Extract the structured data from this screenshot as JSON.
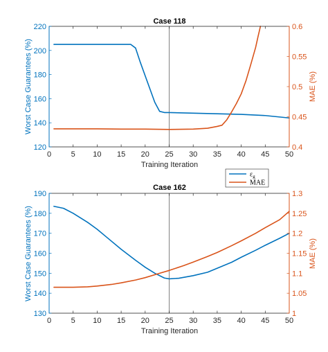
{
  "chart_data": [
    {
      "type": "line",
      "title": "Case 118",
      "xlabel": "Training Iteration",
      "ylabel_left": "Worst Case Guarantees (%)",
      "ylabel_right": "MAE (%)",
      "xlim": [
        0,
        50
      ],
      "ylim_left": [
        120,
        220
      ],
      "ylim_right": [
        0.4,
        0.6
      ],
      "xticks": [
        "0",
        "5",
        "10",
        "15",
        "20",
        "25",
        "30",
        "35",
        "40",
        "45",
        "50"
      ],
      "yticks_left": [
        "120",
        "140",
        "160",
        "180",
        "200",
        "220"
      ],
      "yticks_right": [
        "0.4",
        "0.45",
        "0.5",
        "0.55",
        "0.6"
      ],
      "vline_x": 25,
      "series": [
        {
          "axis": "left",
          "color": "#0072BD",
          "x": [
            1,
            5,
            10,
            15,
            17,
            18,
            19,
            20,
            21,
            22,
            23,
            24,
            25,
            30,
            35,
            40,
            45,
            50
          ],
          "y": [
            205,
            205,
            205,
            205,
            205,
            202,
            190,
            179,
            168,
            157,
            149.5,
            148.5,
            148.5,
            148,
            147.5,
            147,
            146,
            144
          ]
        },
        {
          "axis": "right",
          "color": "#D95319",
          "x": [
            1,
            5,
            10,
            15,
            20,
            25,
            30,
            33,
            35,
            36,
            37,
            38,
            39,
            40,
            41,
            42,
            43,
            43.5,
            44
          ],
          "y": [
            0.43,
            0.43,
            0.43,
            0.4295,
            0.4295,
            0.429,
            0.4295,
            0.431,
            0.434,
            0.436,
            0.445,
            0.458,
            0.472,
            0.488,
            0.51,
            0.537,
            0.565,
            0.583,
            0.6
          ]
        }
      ]
    },
    {
      "type": "line",
      "title": "Case 162",
      "xlabel": "Training Iteration",
      "ylabel_left": "Worst Case Guarantees (%)",
      "ylabel_right": "MAE (%)",
      "xlim": [
        0,
        50
      ],
      "ylim_left": [
        130,
        190
      ],
      "ylim_right": [
        1,
        1.3
      ],
      "xticks": [
        "0",
        "5",
        "10",
        "15",
        "20",
        "25",
        "30",
        "35",
        "40",
        "45",
        "50"
      ],
      "yticks_left": [
        "130",
        "140",
        "150",
        "160",
        "170",
        "180",
        "190"
      ],
      "yticks_right": [
        "1",
        "1.05",
        "1.1",
        "1.15",
        "1.2",
        "1.25",
        "1.3"
      ],
      "vline_x": 25,
      "series": [
        {
          "axis": "left",
          "color": "#0072BD",
          "x": [
            1,
            3,
            5,
            8,
            10,
            12,
            15,
            18,
            20,
            22,
            24,
            25,
            27,
            30,
            33,
            35,
            38,
            40,
            43,
            45,
            48,
            50
          ],
          "y": [
            183.5,
            182.5,
            180,
            175.5,
            172,
            168,
            162,
            156.5,
            153,
            150,
            147.6,
            147.2,
            147.5,
            148.8,
            150.5,
            152.5,
            155.5,
            158,
            161.5,
            164,
            167.5,
            170
          ]
        },
        {
          "axis": "right",
          "color": "#D95319",
          "x": [
            1,
            5,
            8,
            10,
            13,
            15,
            18,
            20,
            23,
            25,
            28,
            30,
            33,
            35,
            38,
            40,
            43,
            45,
            48,
            50
          ],
          "y": [
            1.065,
            1.065,
            1.066,
            1.068,
            1.072,
            1.076,
            1.083,
            1.089,
            1.1,
            1.107,
            1.119,
            1.128,
            1.142,
            1.152,
            1.169,
            1.181,
            1.2,
            1.214,
            1.234,
            1.255
          ]
        }
      ]
    }
  ],
  "legend": {
    "location": "between plots, right",
    "entries": [
      {
        "label": "ε_g",
        "base": "ε",
        "sub": "g",
        "color": "#0072BD"
      },
      {
        "label": "MAE",
        "color": "#D95319"
      }
    ]
  },
  "colors": {
    "left_axis": "#0072BD",
    "right_axis": "#D95319",
    "frame": "#262626",
    "vline": "#808080"
  }
}
